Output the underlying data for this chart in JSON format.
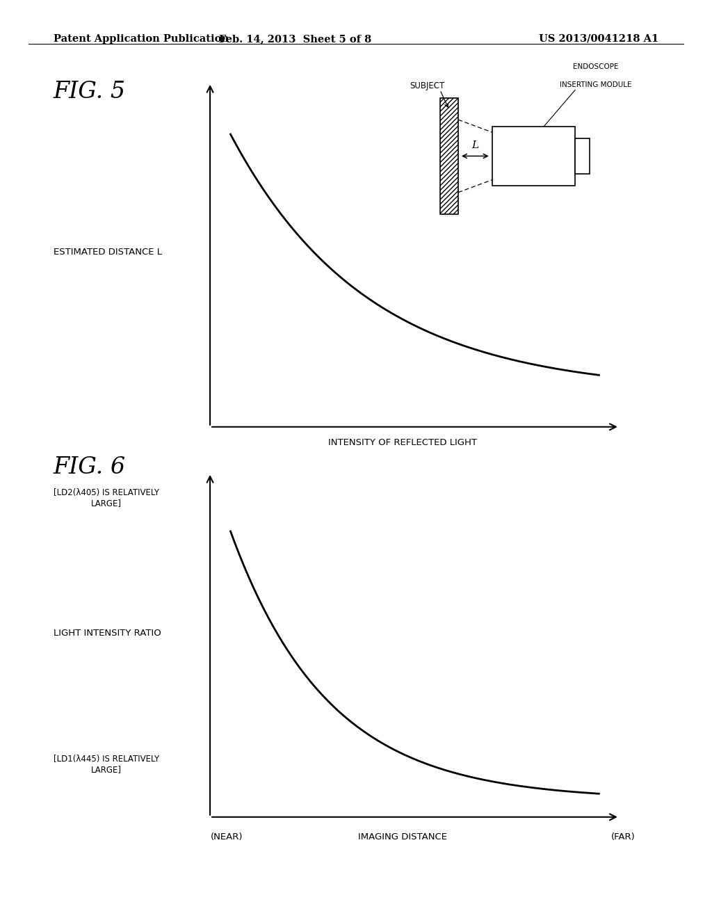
{
  "bg_color": "#ffffff",
  "header_left": "Patent Application Publication",
  "header_center": "Feb. 14, 2013  Sheet 5 of 8",
  "header_right": "US 2013/0041218 A1",
  "fig5_label": "FIG. 5",
  "fig6_label": "FIG. 6",
  "fig5_ylabel": "ESTIMATED DISTANCE L",
  "fig5_xlabel": "INTENSITY OF REFLECTED LIGHT",
  "fig6_ylabel": "LIGHT INTENSITY RATIO",
  "fig6_xlabel": "IMAGING DISTANCE",
  "fig6_xlabel_near": "(NEAR)",
  "fig6_xlabel_far": "(FAR)",
  "fig6_ytop_label_line1": "[LD2(λ405) IS RELATIVELY",
  "fig6_ytop_label_line2": "LARGE]",
  "fig6_ybot_label_line1": "[LD1(λ445) IS RELATIVELY",
  "fig6_ybot_label_line2": "LARGE]",
  "endoscope_label_line1": "ENDOSCOPE",
  "endoscope_label_line2": "INSERTING MODULE",
  "subject_label": "SUBJECT",
  "L_label": "L"
}
